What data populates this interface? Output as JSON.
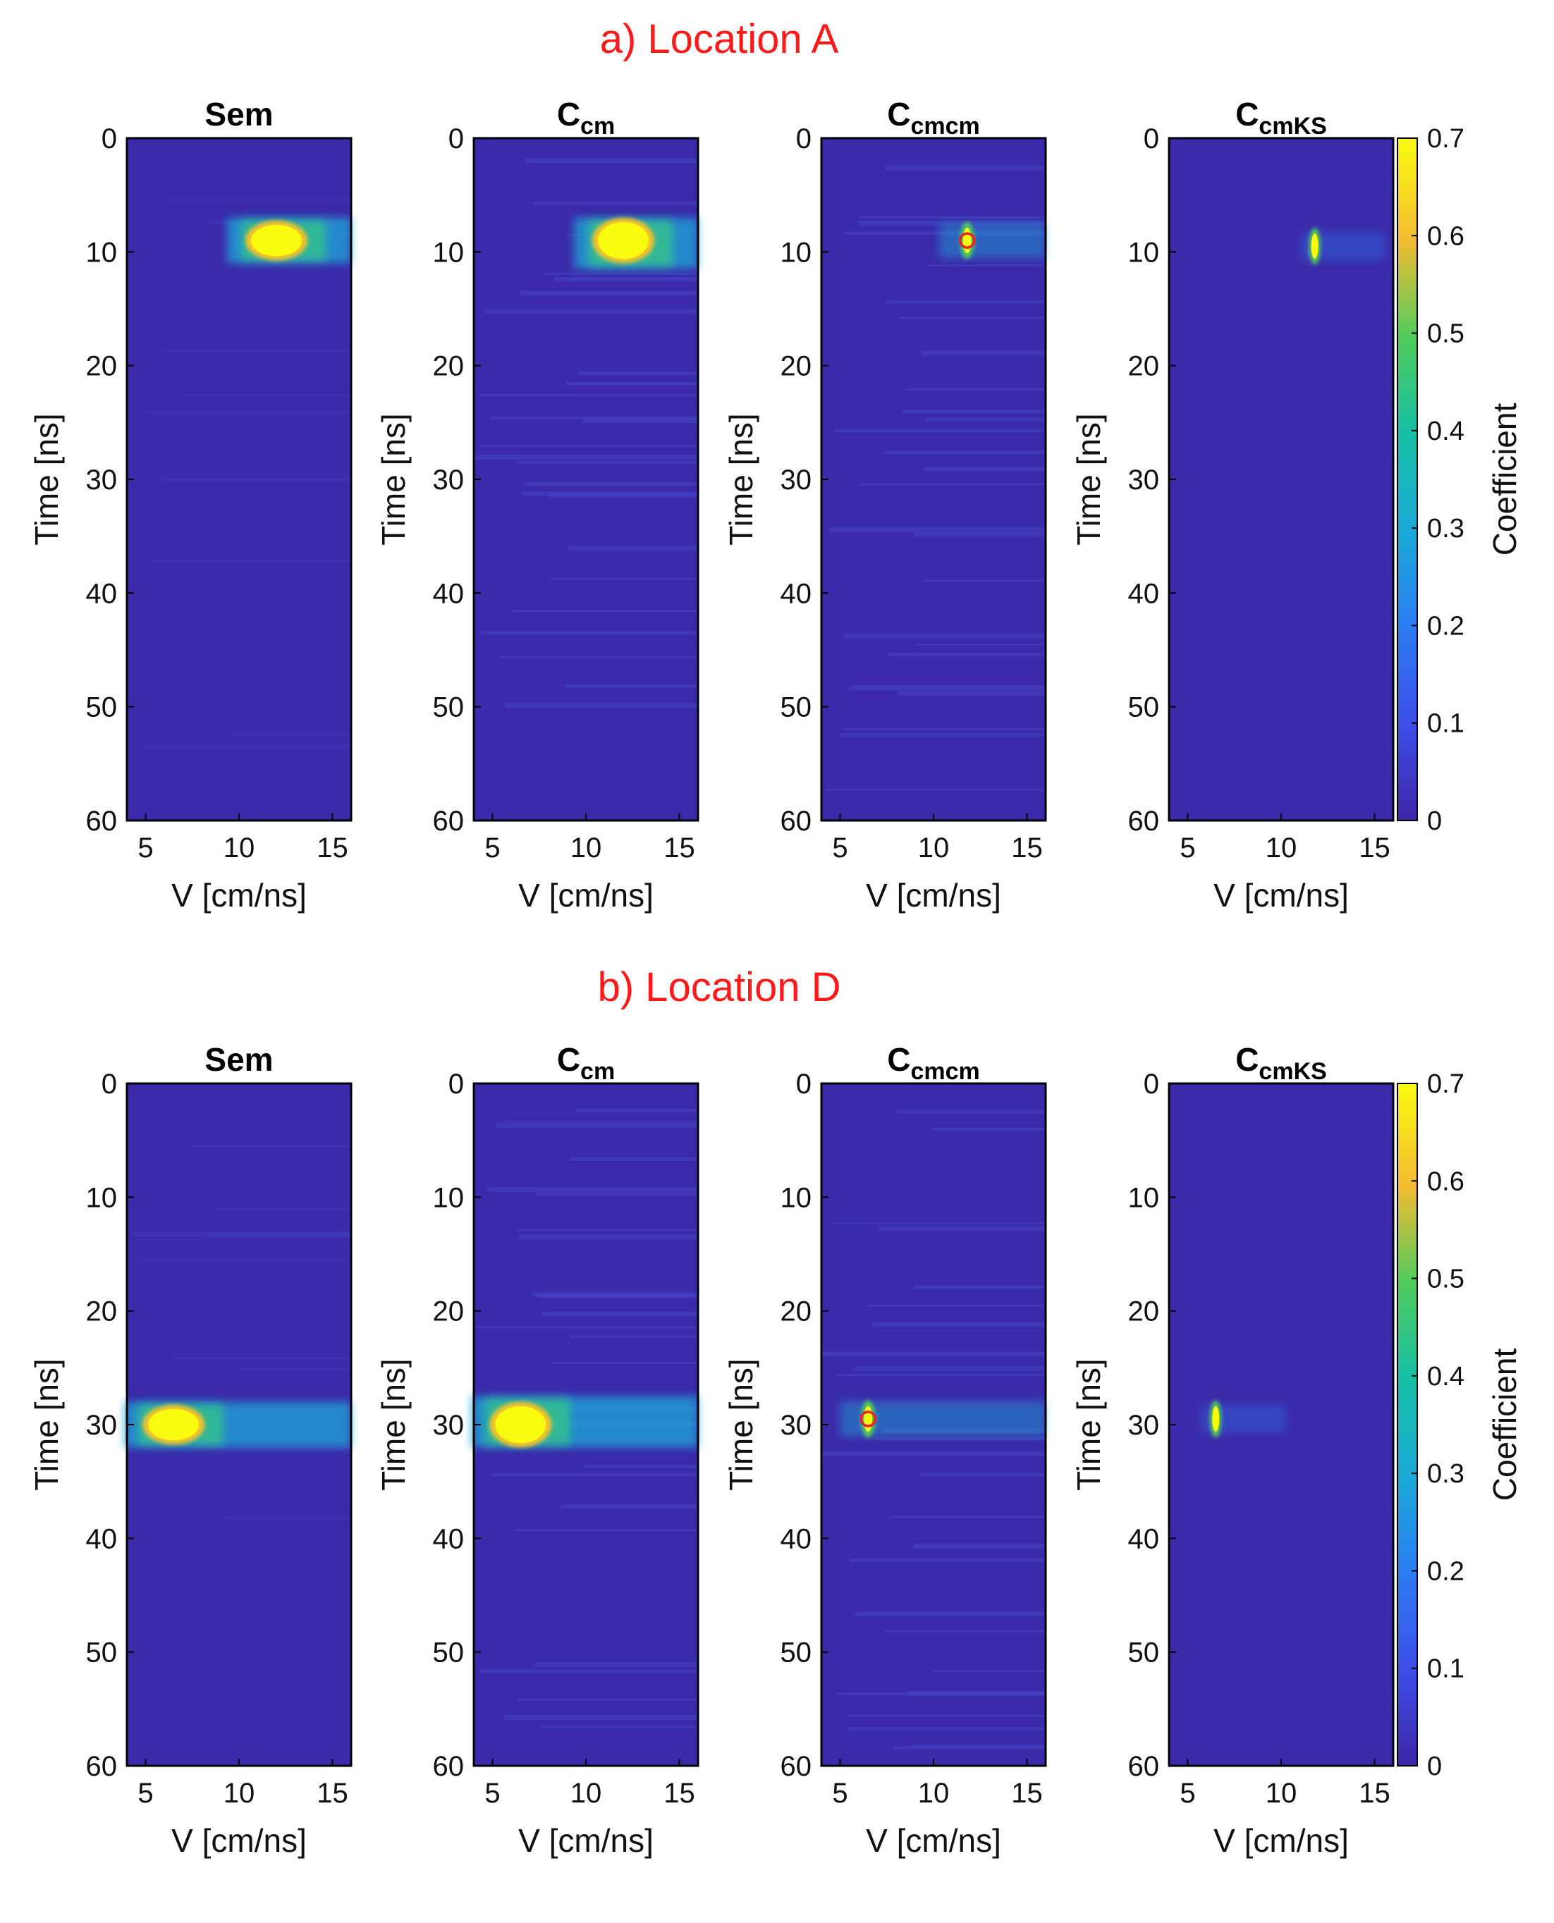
{
  "figure": {
    "sections": [
      {
        "id": "a",
        "label": "a) Location A"
      },
      {
        "id": "b",
        "label": "b) Location D"
      }
    ],
    "panels": [
      {
        "title": "Sem",
        "sub": ""
      },
      {
        "title": "C",
        "sub": "cm"
      },
      {
        "title": "C",
        "sub": "cmcm"
      },
      {
        "title": "C",
        "sub": "cmKS"
      }
    ],
    "x_label": "V [cm/ns]",
    "y_label": "Time [ns]",
    "colorbar_label": "Coefficient"
  },
  "chart_data": [
    {
      "type": "heatmap",
      "section": "a) Location A",
      "x": {
        "label": "V [cm/ns]",
        "range": [
          4,
          16
        ],
        "ticks": [
          5,
          10,
          15
        ]
      },
      "y": {
        "label": "Time [ns]",
        "range": [
          0,
          60
        ],
        "reversed": true,
        "ticks": [
          0,
          10,
          20,
          30,
          40,
          50,
          60
        ]
      },
      "colorbar": {
        "label": "Coefficient",
        "range": [
          0,
          0.7
        ],
        "ticks": [
          0,
          0.1,
          0.2,
          0.3,
          0.4,
          0.5,
          0.6,
          0.7
        ],
        "colormap": "parula"
      },
      "panels": [
        {
          "title": "Sem",
          "peak_v": 12,
          "peak_t": 9,
          "peak_value": 0.7,
          "event_band_t": [
            7,
            11
          ]
        },
        {
          "title": "Ccm",
          "peak_v": 12,
          "peak_t": 9,
          "peak_value": 0.7,
          "event_band_t": [
            7,
            11.5
          ]
        },
        {
          "title": "Ccmcm",
          "peak_v": 11.8,
          "peak_t": 9,
          "peak_value": 0.7,
          "picked_marker": {
            "v": 11.8,
            "t": 9
          }
        },
        {
          "title": "CcmKS",
          "peak_v": 11.8,
          "peak_t": 9.5,
          "peak_value": 0.7
        }
      ]
    },
    {
      "type": "heatmap",
      "section": "b) Location D",
      "x": {
        "label": "V [cm/ns]",
        "range": [
          4,
          16
        ],
        "ticks": [
          5,
          10,
          15
        ]
      },
      "y": {
        "label": "Time [ns]",
        "range": [
          0,
          60
        ],
        "reversed": true,
        "ticks": [
          0,
          10,
          20,
          30,
          40,
          50,
          60
        ]
      },
      "colorbar": {
        "label": "Coefficient",
        "range": [
          0,
          0.7
        ],
        "ticks": [
          0,
          0.1,
          0.2,
          0.3,
          0.4,
          0.5,
          0.6,
          0.7
        ],
        "colormap": "parula"
      },
      "panels": [
        {
          "title": "Sem",
          "peak_v": 6.5,
          "peak_t": 30,
          "peak_value": 0.7,
          "event_band_t": [
            28,
            32
          ]
        },
        {
          "title": "Ccm",
          "peak_v": 6.5,
          "peak_t": 30,
          "peak_value": 0.7,
          "event_band_t": [
            27.5,
            32
          ]
        },
        {
          "title": "Ccmcm",
          "peak_v": 6.5,
          "peak_t": 29.5,
          "peak_value": 0.7,
          "picked_marker": {
            "v": 6.5,
            "t": 29.5
          }
        },
        {
          "title": "CcmKS",
          "peak_v": 6.5,
          "peak_t": 29.5,
          "peak_value": 0.7
        }
      ]
    }
  ]
}
